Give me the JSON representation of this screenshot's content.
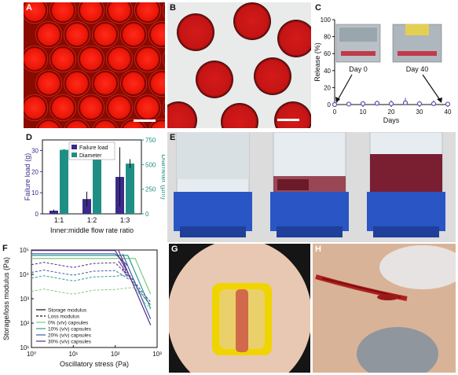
{
  "panels": {
    "A": {
      "label": "A"
    },
    "B": {
      "label": "B"
    },
    "C": {
      "label": "C"
    },
    "D": {
      "label": "D"
    },
    "E": {
      "label": "E"
    },
    "F": {
      "label": "F"
    },
    "G": {
      "label": "G"
    },
    "H": {
      "label": "H"
    }
  },
  "panel_c_insets": [
    "Day 0",
    "Day 40"
  ],
  "chart_data": [
    {
      "panel": "C",
      "type": "scatter",
      "title": "",
      "xlabel": "Days",
      "ylabel": "Release (%)",
      "xlim": [
        0,
        40
      ],
      "ylim": [
        0,
        100
      ],
      "xticks": [
        "0",
        "10",
        "20",
        "30",
        "40"
      ],
      "yticks": [
        "0",
        "20",
        "40",
        "60",
        "80",
        "100"
      ],
      "series": [
        {
          "x": [
            0,
            5,
            10,
            15,
            20,
            25,
            30,
            35,
            40
          ],
          "y": [
            0,
            0.5,
            1,
            1.5,
            1,
            2,
            1,
            1,
            0.5
          ],
          "err": [
            1,
            2,
            3,
            3,
            4,
            6,
            3,
            4,
            2
          ]
        }
      ],
      "color": "#5a4fb0"
    },
    {
      "panel": "D",
      "type": "bar",
      "title": "",
      "xlabel": "Inner:middle flow rate ratio",
      "ylabel": "Failure load (g)",
      "y2label": "Diameter (µm)",
      "categories": [
        "1:1",
        "1:2",
        "1:3"
      ],
      "ylim": [
        0,
        35
      ],
      "y2lim": [
        0,
        750
      ],
      "yticks": [
        "0",
        "10",
        "20",
        "30"
      ],
      "y2ticks": [
        "0",
        "250",
        "500",
        "750"
      ],
      "series": [
        {
          "name": "Failure load",
          "axis": "left",
          "color": "#3b2a8a",
          "values": [
            1.5,
            7,
            17.5
          ],
          "err": [
            0.5,
            3.5,
            14
          ]
        },
        {
          "name": "Diameter",
          "axis": "right",
          "color": "#1f8f86",
          "values": [
            650,
            575,
            510
          ],
          "err": [
            5,
            15,
            45
          ]
        }
      ]
    },
    {
      "panel": "F",
      "type": "line",
      "title": "",
      "xlabel": "Oscillatory stress (Pa)",
      "ylabel": "Storage/loss modulus (Pa)",
      "log_x": true,
      "log_y": true,
      "xticks": [
        "10⁰",
        "10¹",
        "10²",
        "10³"
      ],
      "yticks": [
        "10¹",
        "10²",
        "10³",
        "10⁴",
        "10⁵"
      ],
      "legend": [
        "Storage modulus",
        "Loss modulus",
        "0% (v/v) capsules",
        "10% (v/v) capsules",
        "20% (v/v) capsules",
        "30% (v/v) capsules"
      ],
      "series": [
        {
          "name": "0% (v/v) capsules",
          "color": "#7fc97f",
          "storage_plateau": 45000,
          "loss_plateau": 2000
        },
        {
          "name": "10% (v/v) capsules",
          "color": "#2a9d8f",
          "storage_plateau": 60000,
          "loss_plateau": 7000
        },
        {
          "name": "20% (v/v) capsules",
          "color": "#3a5da8",
          "storage_plateau": 70000,
          "loss_plateau": 12000
        },
        {
          "name": "30% (v/v) capsules",
          "color": "#5b2a86",
          "storage_plateau": 95000,
          "loss_plateau": 25000
        }
      ]
    }
  ]
}
